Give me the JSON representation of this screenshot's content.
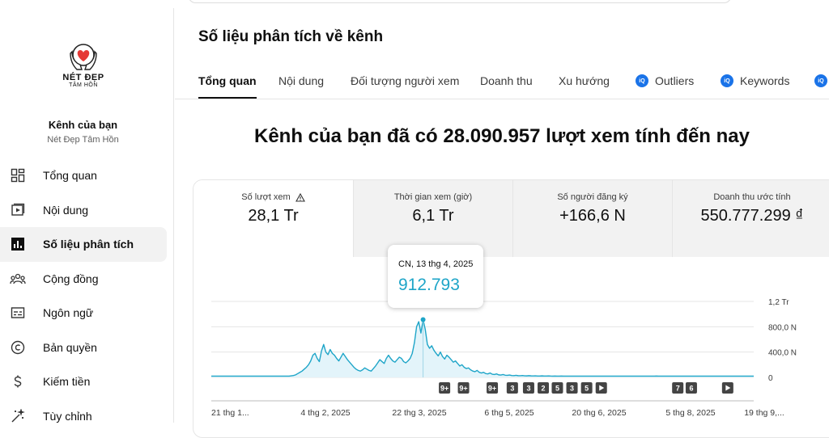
{
  "logo": {
    "line1": "NÉT ĐẸP",
    "line2": "TÂM HỒN"
  },
  "channel": {
    "title": "Kênh của bạn",
    "name": "Nét Đẹp Tâm Hồn"
  },
  "nav": [
    {
      "label": "Tổng quan",
      "icon": "dashboard-icon"
    },
    {
      "label": "Nội dung",
      "icon": "content-icon"
    },
    {
      "label": "Số liệu phân tích",
      "icon": "analytics-icon",
      "active": true
    },
    {
      "label": "Cộng đồng",
      "icon": "community-icon"
    },
    {
      "label": "Ngôn ngữ",
      "icon": "subtitles-icon"
    },
    {
      "label": "Bản quyền",
      "icon": "copyright-icon"
    },
    {
      "label": "Kiếm tiền",
      "icon": "dollar-icon"
    },
    {
      "label": "Tùy chỉnh",
      "icon": "magic-wand-icon"
    }
  ],
  "page_title": "Số liệu phân tích về kênh",
  "tabs": [
    {
      "label": "Tổng quan",
      "active": true
    },
    {
      "label": "Nội dung"
    },
    {
      "label": "Đối tượng người xem"
    },
    {
      "label": "Doanh thu"
    },
    {
      "label": "Xu hướng"
    },
    {
      "label": "Outliers",
      "icon": "vidiq-icon"
    },
    {
      "label": "Keywords",
      "icon": "vidiq-icon"
    }
  ],
  "headline": "Kênh của bạn đã có 28.090.957 lượt xem tính đến nay",
  "metrics": [
    {
      "label": "Số lượt xem",
      "value": "28,1 Tr",
      "warning": true
    },
    {
      "label": "Thời gian xem (giờ)",
      "value": "6,1 Tr"
    },
    {
      "label": "Số người đăng ký",
      "value": "+166,6 N"
    },
    {
      "label": "Doanh thu ước tính",
      "value": "550.777.299 ₫"
    }
  ],
  "tooltip": {
    "date": "CN, 13 thg 4, 2025",
    "value": "912.793"
  },
  "colors": {
    "line": "#1ea5c8",
    "fill": "#e3f4fa",
    "accent": "#1a73e8"
  },
  "chart_data": {
    "type": "area",
    "y_tick_labels": [
      "1,2 Tr",
      "800,0 N",
      "400,0 N",
      "0"
    ],
    "ylim": [
      0,
      1200000
    ],
    "x_tick_labels": [
      "21 thg 1...",
      "4 thg 2, 2025",
      "22 thg 3, 2025",
      "6 thg 5, 2025",
      "20 thg 6, 2025",
      "5 thg 8, 2025",
      "19 thg 9,..."
    ],
    "series": [
      {
        "values": [
          20000,
          20000,
          20000,
          20000,
          20000,
          20000,
          20000,
          20000,
          20000,
          20000,
          20000,
          20000,
          20000,
          20000,
          20000,
          20000,
          20000,
          20000,
          20000,
          20000,
          20000,
          20000,
          20000,
          20000,
          20000,
          20000,
          20000,
          20000,
          20000,
          20000,
          20000,
          20000,
          20000,
          20000,
          20000,
          20000,
          20000,
          25000,
          30000,
          40000,
          60000,
          80000,
          100000,
          130000,
          160000,
          200000,
          260000,
          350000,
          380000,
          300000,
          250000,
          420000,
          520000,
          400000,
          360000,
          440000,
          380000,
          350000,
          300000,
          260000,
          320000,
          380000,
          330000,
          280000,
          240000,
          200000,
          160000,
          130000,
          110000,
          100000,
          120000,
          150000,
          130000,
          110000,
          100000,
          140000,
          180000,
          230000,
          280000,
          250000,
          220000,
          300000,
          350000,
          300000,
          260000,
          240000,
          280000,
          320000,
          300000,
          250000,
          230000,
          260000,
          300000,
          380000,
          550000,
          800000,
          880000,
          700000,
          912793,
          760000,
          520000,
          460000,
          500000,
          430000,
          380000,
          340000,
          400000,
          330000,
          290000,
          350000,
          320000,
          280000,
          240000,
          260000,
          220000,
          180000,
          200000,
          160000,
          140000,
          150000,
          120000,
          100000,
          90000,
          110000,
          80000,
          70000,
          80000,
          60000,
          55000,
          70000,
          50000,
          45000,
          55000,
          40000,
          38000,
          45000,
          35000,
          32000,
          38000,
          30000,
          28000,
          32000,
          27000,
          26000,
          29000,
          25000,
          24000,
          27000,
          24000,
          23000,
          25000,
          22000,
          22000,
          24000,
          21000,
          21000,
          23000,
          21000,
          20000,
          22000,
          20000,
          20000,
          21000,
          20000,
          20000,
          20000,
          20000,
          20000,
          20000,
          20000,
          20000,
          20000,
          20000,
          20000,
          20000,
          20000,
          20000,
          20000,
          20000,
          20000,
          20000,
          20000,
          20000,
          20000,
          20000,
          20000,
          20000,
          20000,
          20000,
          20000,
          20000,
          20000,
          20000,
          20000,
          20000,
          20000,
          20000,
          20000,
          20000,
          20000,
          20000,
          20000,
          20000,
          20000,
          20000,
          20000,
          22000,
          20000,
          20000,
          20000,
          20000,
          20000,
          20000,
          20000,
          20000,
          20000,
          20000,
          20000,
          20000,
          20000,
          20000,
          20000,
          20000,
          20000,
          20000,
          20000,
          20000,
          20000,
          20000,
          20000,
          20000,
          20000,
          20000,
          20000,
          20000,
          20000,
          20000,
          20000,
          20000,
          20000,
          20000,
          20000,
          20000,
          20000,
          20000,
          20000,
          20000,
          20000,
          20000,
          20000,
          20000,
          20000
        ]
      }
    ],
    "highlight_index": 98,
    "markers": [
      {
        "label": "9+",
        "type": "count",
        "at": 0.43
      },
      {
        "label": "9+",
        "type": "count",
        "at": 0.465
      },
      {
        "label": "9+",
        "type": "count",
        "at": 0.518
      },
      {
        "label": "3",
        "type": "count",
        "at": 0.555
      },
      {
        "label": "3",
        "type": "count",
        "at": 0.585
      },
      {
        "label": "2",
        "type": "count",
        "at": 0.612
      },
      {
        "label": "5",
        "type": "count",
        "at": 0.638
      },
      {
        "label": "3",
        "type": "count",
        "at": 0.665
      },
      {
        "label": "5",
        "type": "count",
        "at": 0.692
      },
      {
        "label": "",
        "type": "play",
        "at": 0.719
      },
      {
        "label": "7",
        "type": "count",
        "at": 0.86
      },
      {
        "label": "6",
        "type": "count",
        "at": 0.885
      },
      {
        "label": "",
        "type": "play",
        "at": 0.952
      }
    ]
  }
}
